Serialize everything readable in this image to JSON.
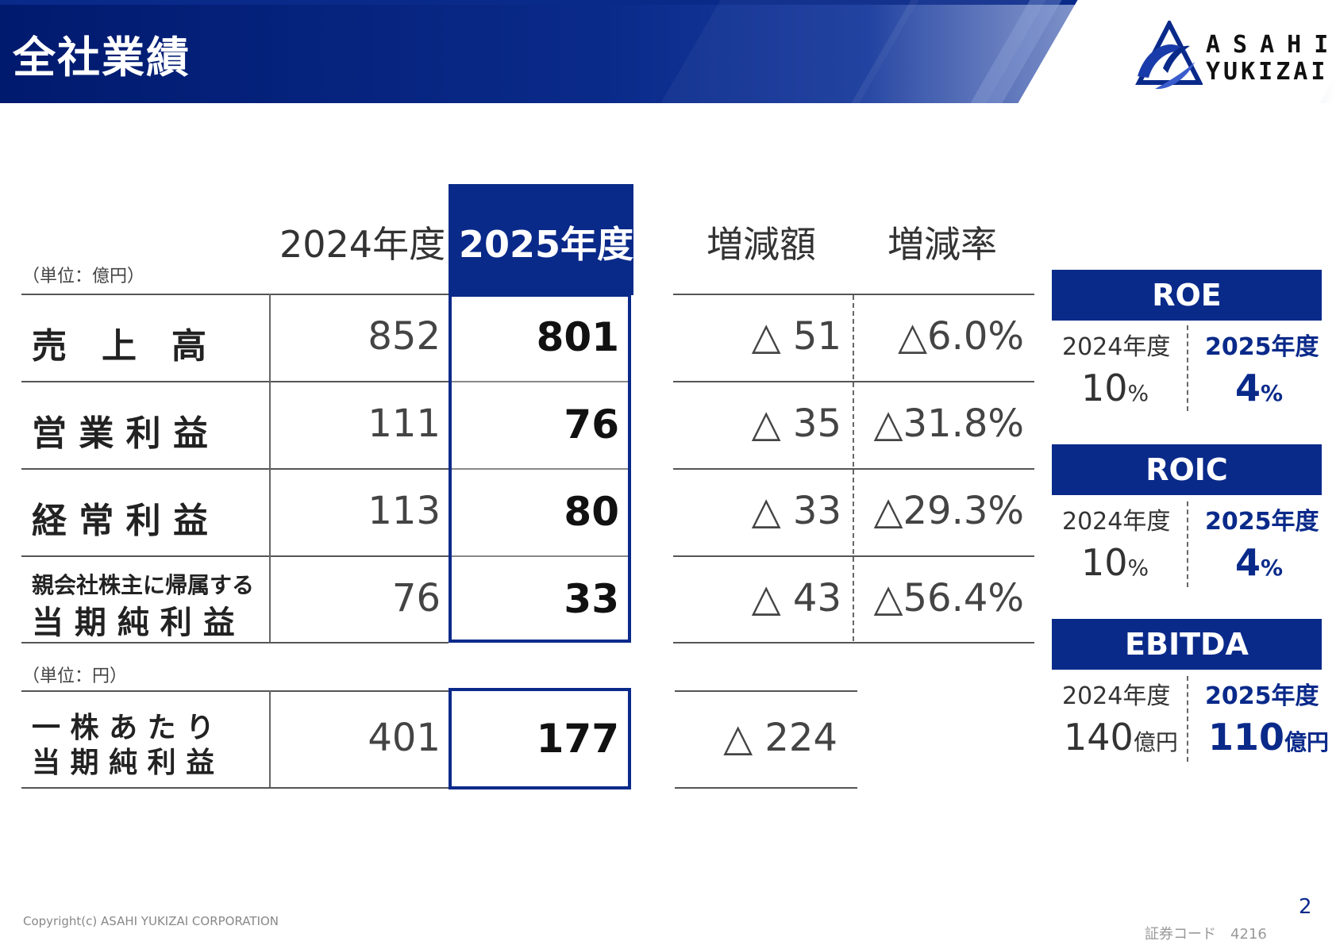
{
  "header": {
    "title": "全社業績"
  },
  "logo": {
    "line1": "ASAHI",
    "line2": "YUKIZAI"
  },
  "table": {
    "unit_top": "（単位：億円）",
    "col_prev": "2024年度",
    "col_cur": "2025年度",
    "col_diff": "増減額",
    "col_rate": "増減率",
    "rows": [
      {
        "label": "売　上　高",
        "prev": "852",
        "cur": "801",
        "diff": "△ 51",
        "rate": "△6.0%"
      },
      {
        "label": "営 業 利 益",
        "prev": "111",
        "cur": "76",
        "diff": "△ 35",
        "rate": "△31.8%"
      },
      {
        "label": "経 常 利 益",
        "prev": "113",
        "cur": "80",
        "diff": "△ 33",
        "rate": "△29.3%"
      },
      {
        "label_small": "親会社株主に帰属する",
        "label": "当 期 純 利 益",
        "prev": "76",
        "cur": "33",
        "diff": "△ 43",
        "rate": "△56.4%"
      }
    ],
    "unit_bottom": "（単位：円）",
    "eps": {
      "label_line1": "一 株 あ た り",
      "label_line2": "当 期 純 利 益",
      "prev": "401",
      "cur": "177",
      "diff": "△ 224"
    }
  },
  "kpis": [
    {
      "title": "ROE",
      "prev_year": "2024年度",
      "cur_year": "2025年度",
      "prev_value": "10",
      "cur_value": "4",
      "unit": "%"
    },
    {
      "title": "ROIC",
      "prev_year": "2024年度",
      "cur_year": "2025年度",
      "prev_value": "10",
      "cur_value": "4",
      "unit": "%"
    },
    {
      "title": "EBITDA",
      "prev_year": "2024年度",
      "cur_year": "2025年度",
      "prev_value": "140",
      "cur_value": "110",
      "unit": "億円"
    }
  ],
  "footer": {
    "copyright": "Copyright(c) ASAHI YUKIZAI CORPORATION",
    "stock_code": "証券コード　4216",
    "page_number": "2"
  },
  "colors": {
    "brand_navy": "#0a2a8a"
  }
}
